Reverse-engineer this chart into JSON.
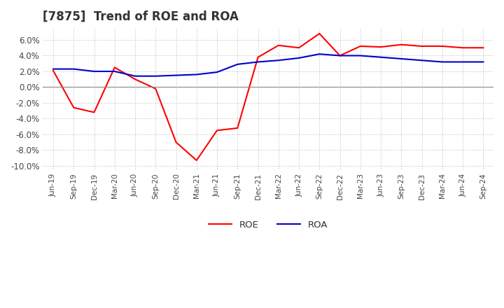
{
  "title": "[7875]  Trend of ROE and ROA",
  "title_fontsize": 12,
  "ylim": [
    -0.105,
    0.075
  ],
  "yticks": [
    0.06,
    0.04,
    0.02,
    0.0,
    -0.02,
    -0.04,
    -0.06,
    -0.08,
    -0.1
  ],
  "background_color": "#ffffff",
  "grid_color": "#bbbbbb",
  "roe_color": "#ff0000",
  "roa_color": "#0000cc",
  "x_labels": [
    "Jun-19",
    "Sep-19",
    "Dec-19",
    "Mar-20",
    "Jun-20",
    "Sep-20",
    "Dec-20",
    "Mar-21",
    "Jun-21",
    "Sep-21",
    "Dec-21",
    "Mar-22",
    "Jun-22",
    "Sep-22",
    "Dec-22",
    "Mar-23",
    "Jun-23",
    "Sep-23",
    "Dec-23",
    "Mar-24",
    "Jun-24",
    "Sep-24"
  ],
  "roe_values": [
    0.021,
    -0.026,
    -0.032,
    0.025,
    0.01,
    -0.002,
    -0.07,
    -0.093,
    -0.055,
    -0.052,
    0.038,
    0.053,
    0.05,
    0.068,
    0.04,
    0.052,
    0.051,
    0.054,
    0.052,
    0.052,
    0.05,
    0.05
  ],
  "roa_values": [
    0.023,
    0.023,
    0.02,
    0.02,
    0.014,
    0.014,
    0.015,
    0.016,
    0.019,
    0.029,
    0.032,
    0.034,
    0.037,
    0.042,
    0.04,
    0.04,
    0.038,
    0.036,
    0.034,
    0.032,
    0.032,
    0.032
  ]
}
